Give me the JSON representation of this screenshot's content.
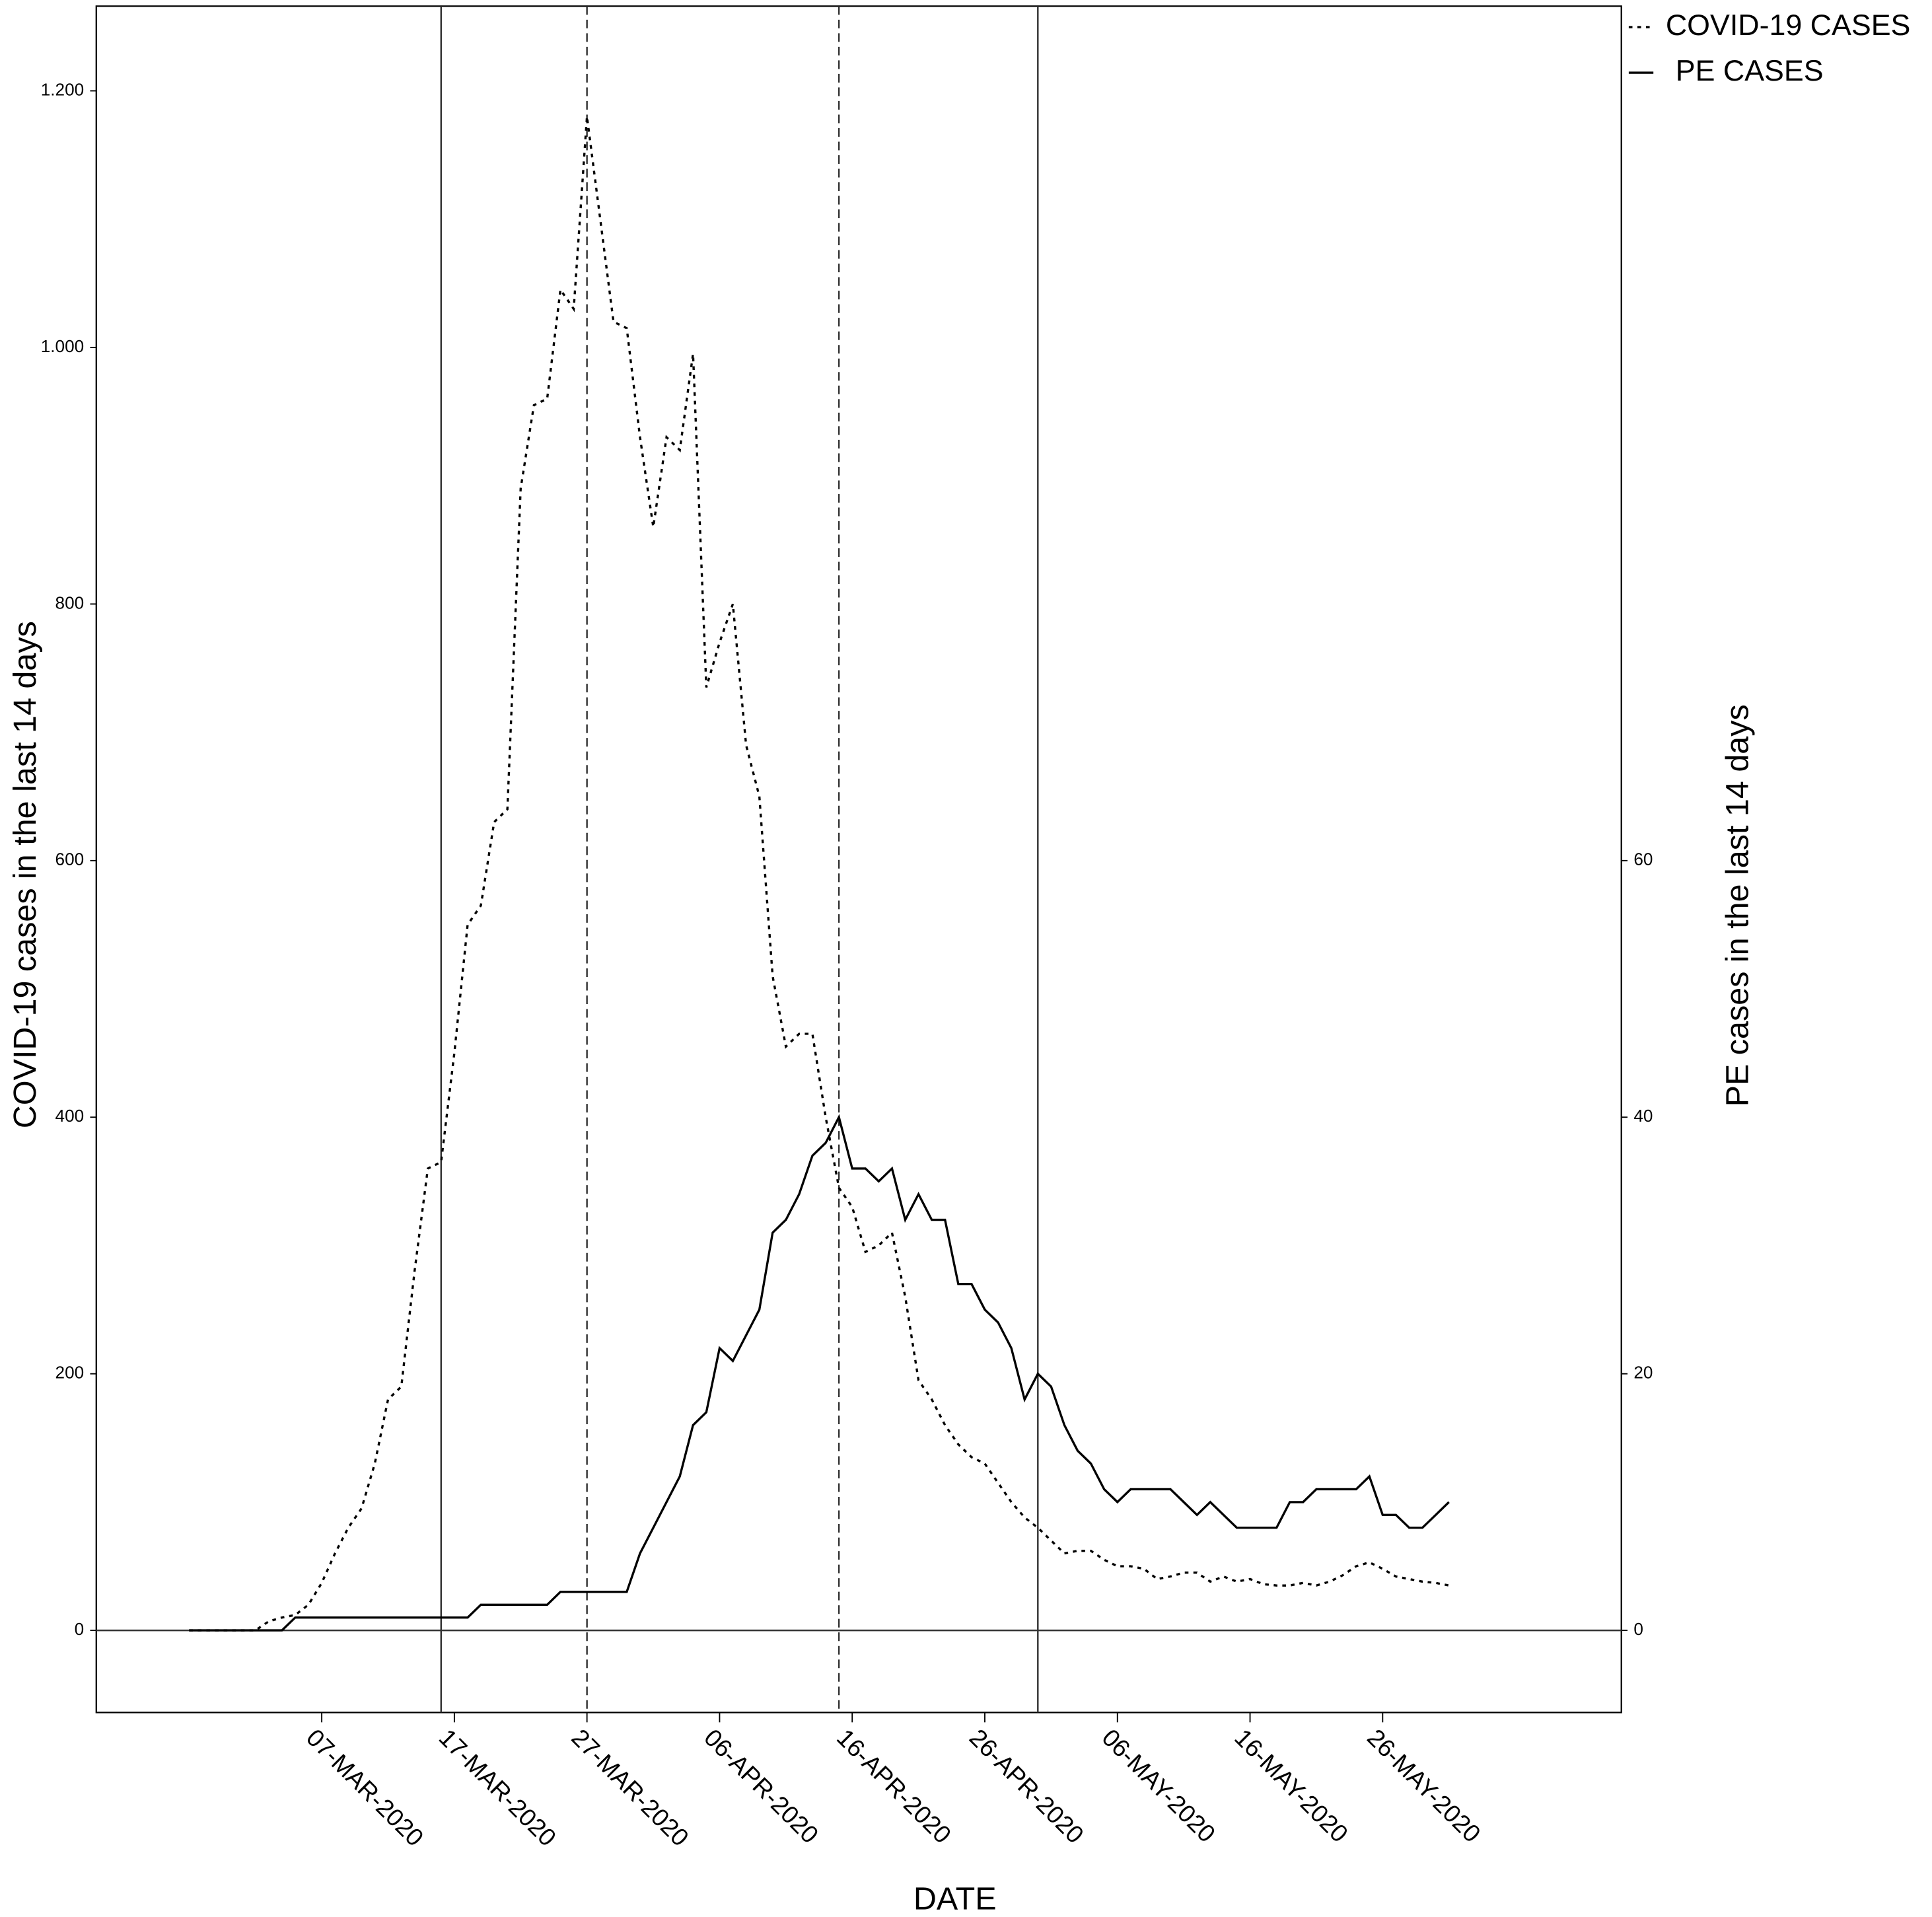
{
  "chart_data": {
    "type": "line",
    "x_label": "DATE",
    "y_label": "COVID-19 cases in the last 14 days",
    "y2_label": "PE cases in the last 14 days",
    "x": [
      "2020-02-26",
      "2020-02-27",
      "2020-02-28",
      "2020-02-29",
      "2020-03-01",
      "2020-03-02",
      "2020-03-03",
      "2020-03-04",
      "2020-03-05",
      "2020-03-06",
      "2020-03-07",
      "2020-03-08",
      "2020-03-09",
      "2020-03-10",
      "2020-03-11",
      "2020-03-12",
      "2020-03-13",
      "2020-03-14",
      "2020-03-15",
      "2020-03-16",
      "2020-03-17",
      "2020-03-18",
      "2020-03-19",
      "2020-03-20",
      "2020-03-21",
      "2020-03-22",
      "2020-03-23",
      "2020-03-24",
      "2020-03-25",
      "2020-03-26",
      "2020-03-27",
      "2020-03-28",
      "2020-03-29",
      "2020-03-30",
      "2020-03-31",
      "2020-04-01",
      "2020-04-02",
      "2020-04-03",
      "2020-04-04",
      "2020-04-05",
      "2020-04-06",
      "2020-04-07",
      "2020-04-08",
      "2020-04-09",
      "2020-04-10",
      "2020-04-11",
      "2020-04-12",
      "2020-04-13",
      "2020-04-14",
      "2020-04-15",
      "2020-04-16",
      "2020-04-17",
      "2020-04-18",
      "2020-04-19",
      "2020-04-20",
      "2020-04-21",
      "2020-04-22",
      "2020-04-23",
      "2020-04-24",
      "2020-04-25",
      "2020-04-26",
      "2020-04-27",
      "2020-04-28",
      "2020-04-29",
      "2020-04-30",
      "2020-05-01",
      "2020-05-02",
      "2020-05-03",
      "2020-05-04",
      "2020-05-05",
      "2020-05-06",
      "2020-05-07",
      "2020-05-08",
      "2020-05-09",
      "2020-05-10",
      "2020-05-11",
      "2020-05-12",
      "2020-05-13",
      "2020-05-14",
      "2020-05-15",
      "2020-05-16",
      "2020-05-17",
      "2020-05-18",
      "2020-05-19",
      "2020-05-20",
      "2020-05-21",
      "2020-05-22",
      "2020-05-23",
      "2020-05-24",
      "2020-05-25",
      "2020-05-26",
      "2020-05-27",
      "2020-05-28",
      "2020-05-29",
      "2020-05-30",
      "2020-05-31"
    ],
    "series": [
      {
        "name": "COVID-19 CASES",
        "color": "#000000",
        "dash": "dotted",
        "values": [
          0,
          0,
          0,
          0,
          0,
          0,
          7,
          10,
          12,
          20,
          37,
          60,
          80,
          95,
          130,
          180,
          190,
          280,
          360,
          365,
          450,
          550,
          565,
          630,
          640,
          890,
          955,
          960,
          1045,
          1030,
          1180,
          1100,
          1020,
          1015,
          930,
          860,
          930,
          920,
          995,
          735,
          770,
          800,
          690,
          650,
          510,
          455,
          465,
          465,
          400,
          345,
          330,
          295,
          300,
          310,
          260,
          195,
          180,
          160,
          145,
          135,
          130,
          115,
          100,
          88,
          80,
          70,
          60,
          62,
          62,
          55,
          50,
          50,
          48,
          40,
          42,
          45,
          45,
          38,
          42,
          38,
          40,
          36,
          35,
          35,
          37,
          35,
          38,
          43,
          50,
          53,
          48,
          42,
          40,
          38,
          37,
          35
        ]
      },
      {
        "name": "PE CASES",
        "color": "#000000",
        "dash": "solid",
        "axis": "y2",
        "values": [
          0,
          0,
          0,
          0,
          0,
          0,
          0,
          0,
          1,
          1,
          1,
          1,
          1,
          1,
          1,
          1,
          1,
          1,
          1,
          1,
          1,
          1,
          2,
          2,
          2,
          2,
          2,
          2,
          3,
          3,
          3,
          3,
          3,
          3,
          6,
          8,
          10,
          12,
          16,
          17,
          22,
          21,
          23,
          25,
          31,
          32,
          34,
          37,
          38,
          40,
          36,
          36,
          35,
          36,
          32,
          34,
          32,
          32,
          27,
          27,
          25,
          24,
          22,
          18,
          20,
          19,
          16,
          14,
          13,
          11,
          10,
          11,
          11,
          11,
          11,
          10,
          9,
          10,
          9,
          8,
          8,
          8,
          8,
          10,
          10,
          11,
          11,
          11,
          11,
          12,
          9,
          9,
          8,
          8,
          9,
          10
        ]
      }
    ],
    "xlim": [
      "2020-02-19",
      "2020-06-13"
    ],
    "xticks": [
      {
        "value": "2020-03-07",
        "label": "07-MAR-2020"
      },
      {
        "value": "2020-03-17",
        "label": "17-MAR-2020"
      },
      {
        "value": "2020-03-27",
        "label": "27-MAR-2020"
      },
      {
        "value": "2020-04-06",
        "label": "06-APR-2020"
      },
      {
        "value": "2020-04-16",
        "label": "16-APR-2020"
      },
      {
        "value": "2020-04-26",
        "label": "26-APR-2020"
      },
      {
        "value": "2020-05-06",
        "label": "06-MAY-2020"
      },
      {
        "value": "2020-05-16",
        "label": "16-MAY-2020"
      },
      {
        "value": "2020-05-26",
        "label": "26-MAY-2020"
      }
    ],
    "ylim": [
      -64,
      1266
    ],
    "yticks": [
      0,
      200,
      400,
      600,
      800,
      {
        "value": 1000,
        "label": "1.000"
      },
      {
        "value": 1200,
        "label": "1.200"
      }
    ],
    "y2lim": [
      -6.4,
      126.6
    ],
    "y2ticks": [
      0,
      20,
      40,
      60
    ],
    "reference_lines": [
      {
        "x": "2020-03-16",
        "dash": "solid"
      },
      {
        "x": "2020-03-27",
        "dash": "dashed"
      },
      {
        "x": "2020-04-15",
        "dash": "dashed"
      },
      {
        "x": "2020-04-30",
        "dash": "solid"
      }
    ],
    "zero_line": 0,
    "legend": "upper right",
    "grid": false
  }
}
